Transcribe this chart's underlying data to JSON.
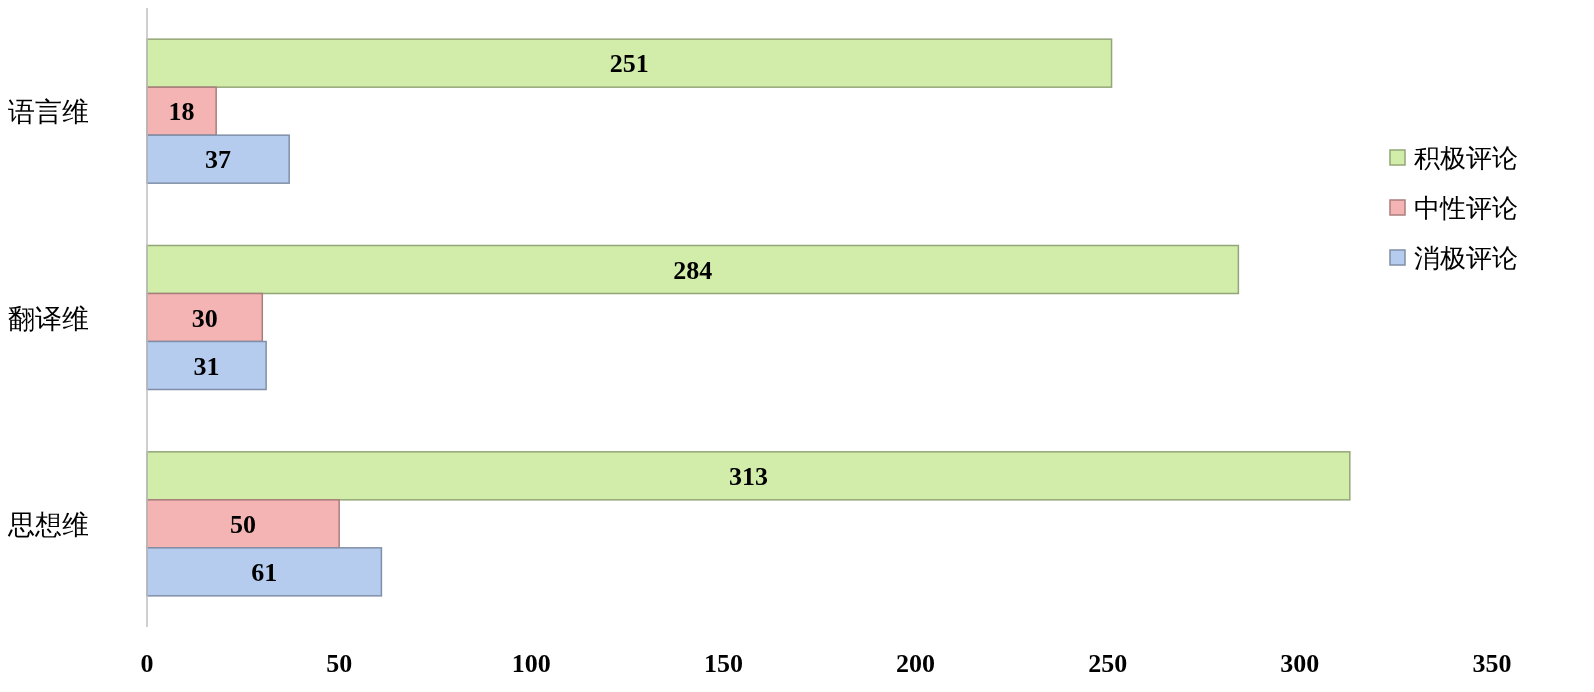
{
  "chart_data": {
    "type": "bar",
    "orientation": "horizontal",
    "categories": [
      "语言维",
      "翻译维",
      "思想维"
    ],
    "series": [
      {
        "name": "积极评论",
        "color": "#d2edaa",
        "values": [
          251,
          284,
          313
        ]
      },
      {
        "name": "中性评论",
        "color": "#f3b4b3",
        "values": [
          18,
          30,
          50
        ]
      },
      {
        "name": "消极评论",
        "color": "#b6ccef",
        "values": [
          37,
          31,
          61
        ]
      }
    ],
    "xlim": [
      0,
      350
    ],
    "xticks": [
      0,
      50,
      100,
      150,
      200,
      250,
      300,
      350
    ],
    "data_labels": true,
    "legend": "right"
  }
}
